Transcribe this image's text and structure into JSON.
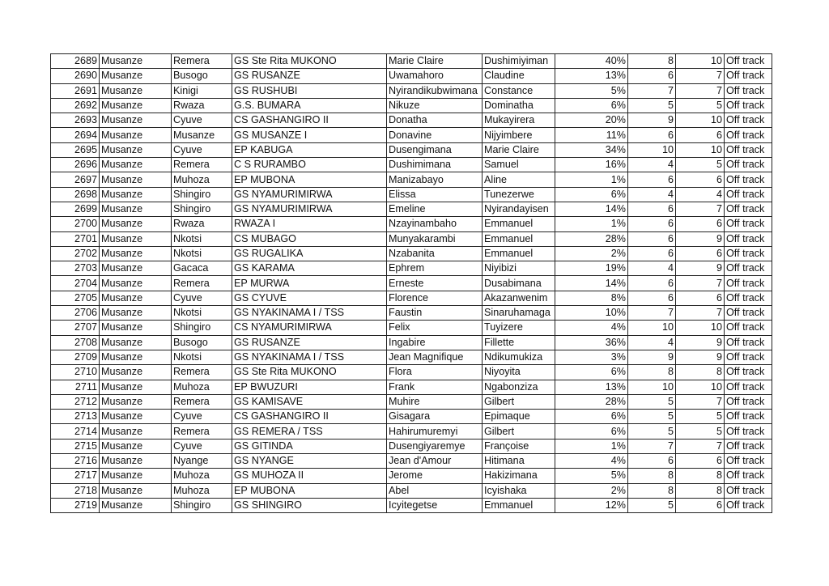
{
  "rows": [
    [
      "2689",
      "Musanze",
      "Remera",
      "GS Ste Rita MUKONO",
      "Marie Claire",
      "Dushimiyiman",
      "40%",
      "8",
      "10",
      "Off track"
    ],
    [
      "2690",
      "Musanze",
      "Busogo",
      "GS RUSANZE",
      "Uwamahoro",
      "Claudine",
      "13%",
      "6",
      "7",
      "Off track"
    ],
    [
      "2691",
      "Musanze",
      "Kinigi",
      "GS RUSHUBI",
      "Nyirandikubwimana",
      "Constance",
      "5%",
      "7",
      "7",
      "Off track"
    ],
    [
      "2692",
      "Musanze",
      "Rwaza",
      "G.S. BUMARA",
      "Nikuze",
      "Dominatha",
      "6%",
      "5",
      "5",
      "Off track"
    ],
    [
      "2693",
      "Musanze",
      "Cyuve",
      "CS GASHANGIRO II",
      "Donatha",
      "Mukayirera",
      "20%",
      "9",
      "10",
      "Off track"
    ],
    [
      "2694",
      "Musanze",
      "Musanze",
      "GS MUSANZE I",
      "Donavine",
      "Nijyimbere",
      "11%",
      "6",
      "6",
      "Off track"
    ],
    [
      "2695",
      "Musanze",
      "Cyuve",
      "EP KABUGA",
      "Dusengimana",
      "Marie Claire",
      "34%",
      "10",
      "10",
      "Off track"
    ],
    [
      "2696",
      "Musanze",
      "Remera",
      "C S RURAMBO",
      "Dushimimana",
      "Samuel",
      "16%",
      "4",
      "5",
      "Off track"
    ],
    [
      "2697",
      "Musanze",
      "Muhoza",
      "EP MUBONA",
      "Manizabayo",
      "Aline",
      "1%",
      "6",
      "6",
      "Off track"
    ],
    [
      "2698",
      "Musanze",
      "Shingiro",
      "GS NYAMURIMIRWA",
      "Elissa",
      "Tunezerwe",
      "6%",
      "4",
      "4",
      "Off track"
    ],
    [
      "2699",
      "Musanze",
      "Shingiro",
      "GS NYAMURIMIRWA",
      "Emeline",
      "Nyirandayisen",
      "14%",
      "6",
      "7",
      "Off track"
    ],
    [
      "2700",
      "Musanze",
      "Rwaza",
      "RWAZA I",
      "Nzayinambaho",
      "Emmanuel",
      "1%",
      "6",
      "6",
      "Off track"
    ],
    [
      "2701",
      "Musanze",
      "Nkotsi",
      "CS MUBAGO",
      "Munyakarambi",
      "Emmanuel",
      "28%",
      "6",
      "9",
      "Off track"
    ],
    [
      "2702",
      "Musanze",
      "Nkotsi",
      "GS RUGALIKA",
      "Nzabanita",
      "Emmanuel",
      "2%",
      "6",
      "6",
      "Off track"
    ],
    [
      "2703",
      "Musanze",
      "Gacaca",
      "GS KARAMA",
      "Ephrem",
      "Niyibizi",
      "19%",
      "4",
      "9",
      "Off track"
    ],
    [
      "2704",
      "Musanze",
      "Remera",
      "EP MURWA",
      "Erneste",
      "Dusabimana",
      "14%",
      "6",
      "7",
      "Off track"
    ],
    [
      "2705",
      "Musanze",
      "Cyuve",
      "GS CYUVE",
      "Florence",
      "Akazanwenim",
      "8%",
      "6",
      "6",
      "Off track"
    ],
    [
      "2706",
      "Musanze",
      "Nkotsi",
      "GS NYAKINAMA I / TSS",
      "Faustin",
      "Sinaruhamaga",
      "10%",
      "7",
      "7",
      "Off track"
    ],
    [
      "2707",
      "Musanze",
      "Shingiro",
      "CS NYAMURIMIRWA",
      "Felix",
      "Tuyizere",
      "4%",
      "10",
      "10",
      "Off track"
    ],
    [
      "2708",
      "Musanze",
      "Busogo",
      "GS RUSANZE",
      "Ingabire",
      "Fillette",
      "36%",
      "4",
      "9",
      "Off track"
    ],
    [
      "2709",
      "Musanze",
      "Nkotsi",
      "GS NYAKINAMA I / TSS",
      "Jean Magnifique",
      "Ndikumukiza",
      "3%",
      "9",
      "9",
      "Off track"
    ],
    [
      "2710",
      "Musanze",
      "Remera",
      "GS Ste Rita MUKONO",
      "Flora",
      "Niyoyita",
      "6%",
      "8",
      "8",
      "Off track"
    ],
    [
      "2711",
      "Musanze",
      "Muhoza",
      "EP BWUZURI",
      "Frank",
      "Ngabonziza",
      "13%",
      "10",
      "10",
      "Off track"
    ],
    [
      "2712",
      "Musanze",
      "Remera",
      "GS KAMISAVE",
      "Muhire",
      "Gilbert",
      "28%",
      "5",
      "7",
      "Off track"
    ],
    [
      "2713",
      "Musanze",
      "Cyuve",
      "CS GASHANGIRO II",
      "Gisagara",
      "Epimaque",
      "6%",
      "5",
      "5",
      "Off track"
    ],
    [
      "2714",
      "Musanze",
      "Remera",
      "GS REMERA / TSS",
      "Hahirumuremyi",
      "Gilbert",
      "6%",
      "5",
      "5",
      "Off track"
    ],
    [
      "2715",
      "Musanze",
      "Cyuve",
      "GS GITINDA",
      "Dusengiyaremye",
      "Françoise",
      "1%",
      "7",
      "7",
      "Off track"
    ],
    [
      "2716",
      "Musanze",
      "Nyange",
      "GS NYANGE",
      "Jean d'Amour",
      "Hitimana",
      "4%",
      "6",
      "6",
      "Off track"
    ],
    [
      "2717",
      "Musanze",
      "Muhoza",
      "GS MUHOZA II",
      "Jerome",
      "Hakizimana",
      "5%",
      "8",
      "8",
      "Off track"
    ],
    [
      "2718",
      "Musanze",
      "Muhoza",
      "EP MUBONA",
      "Abel",
      "Icyishaka",
      "2%",
      "8",
      "8",
      "Off track"
    ],
    [
      "2719",
      "Musanze",
      "Shingiro",
      "GS SHINGIRO",
      "Icyitegetse",
      "Emmanuel",
      "12%",
      "5",
      "6",
      "Off track"
    ]
  ]
}
